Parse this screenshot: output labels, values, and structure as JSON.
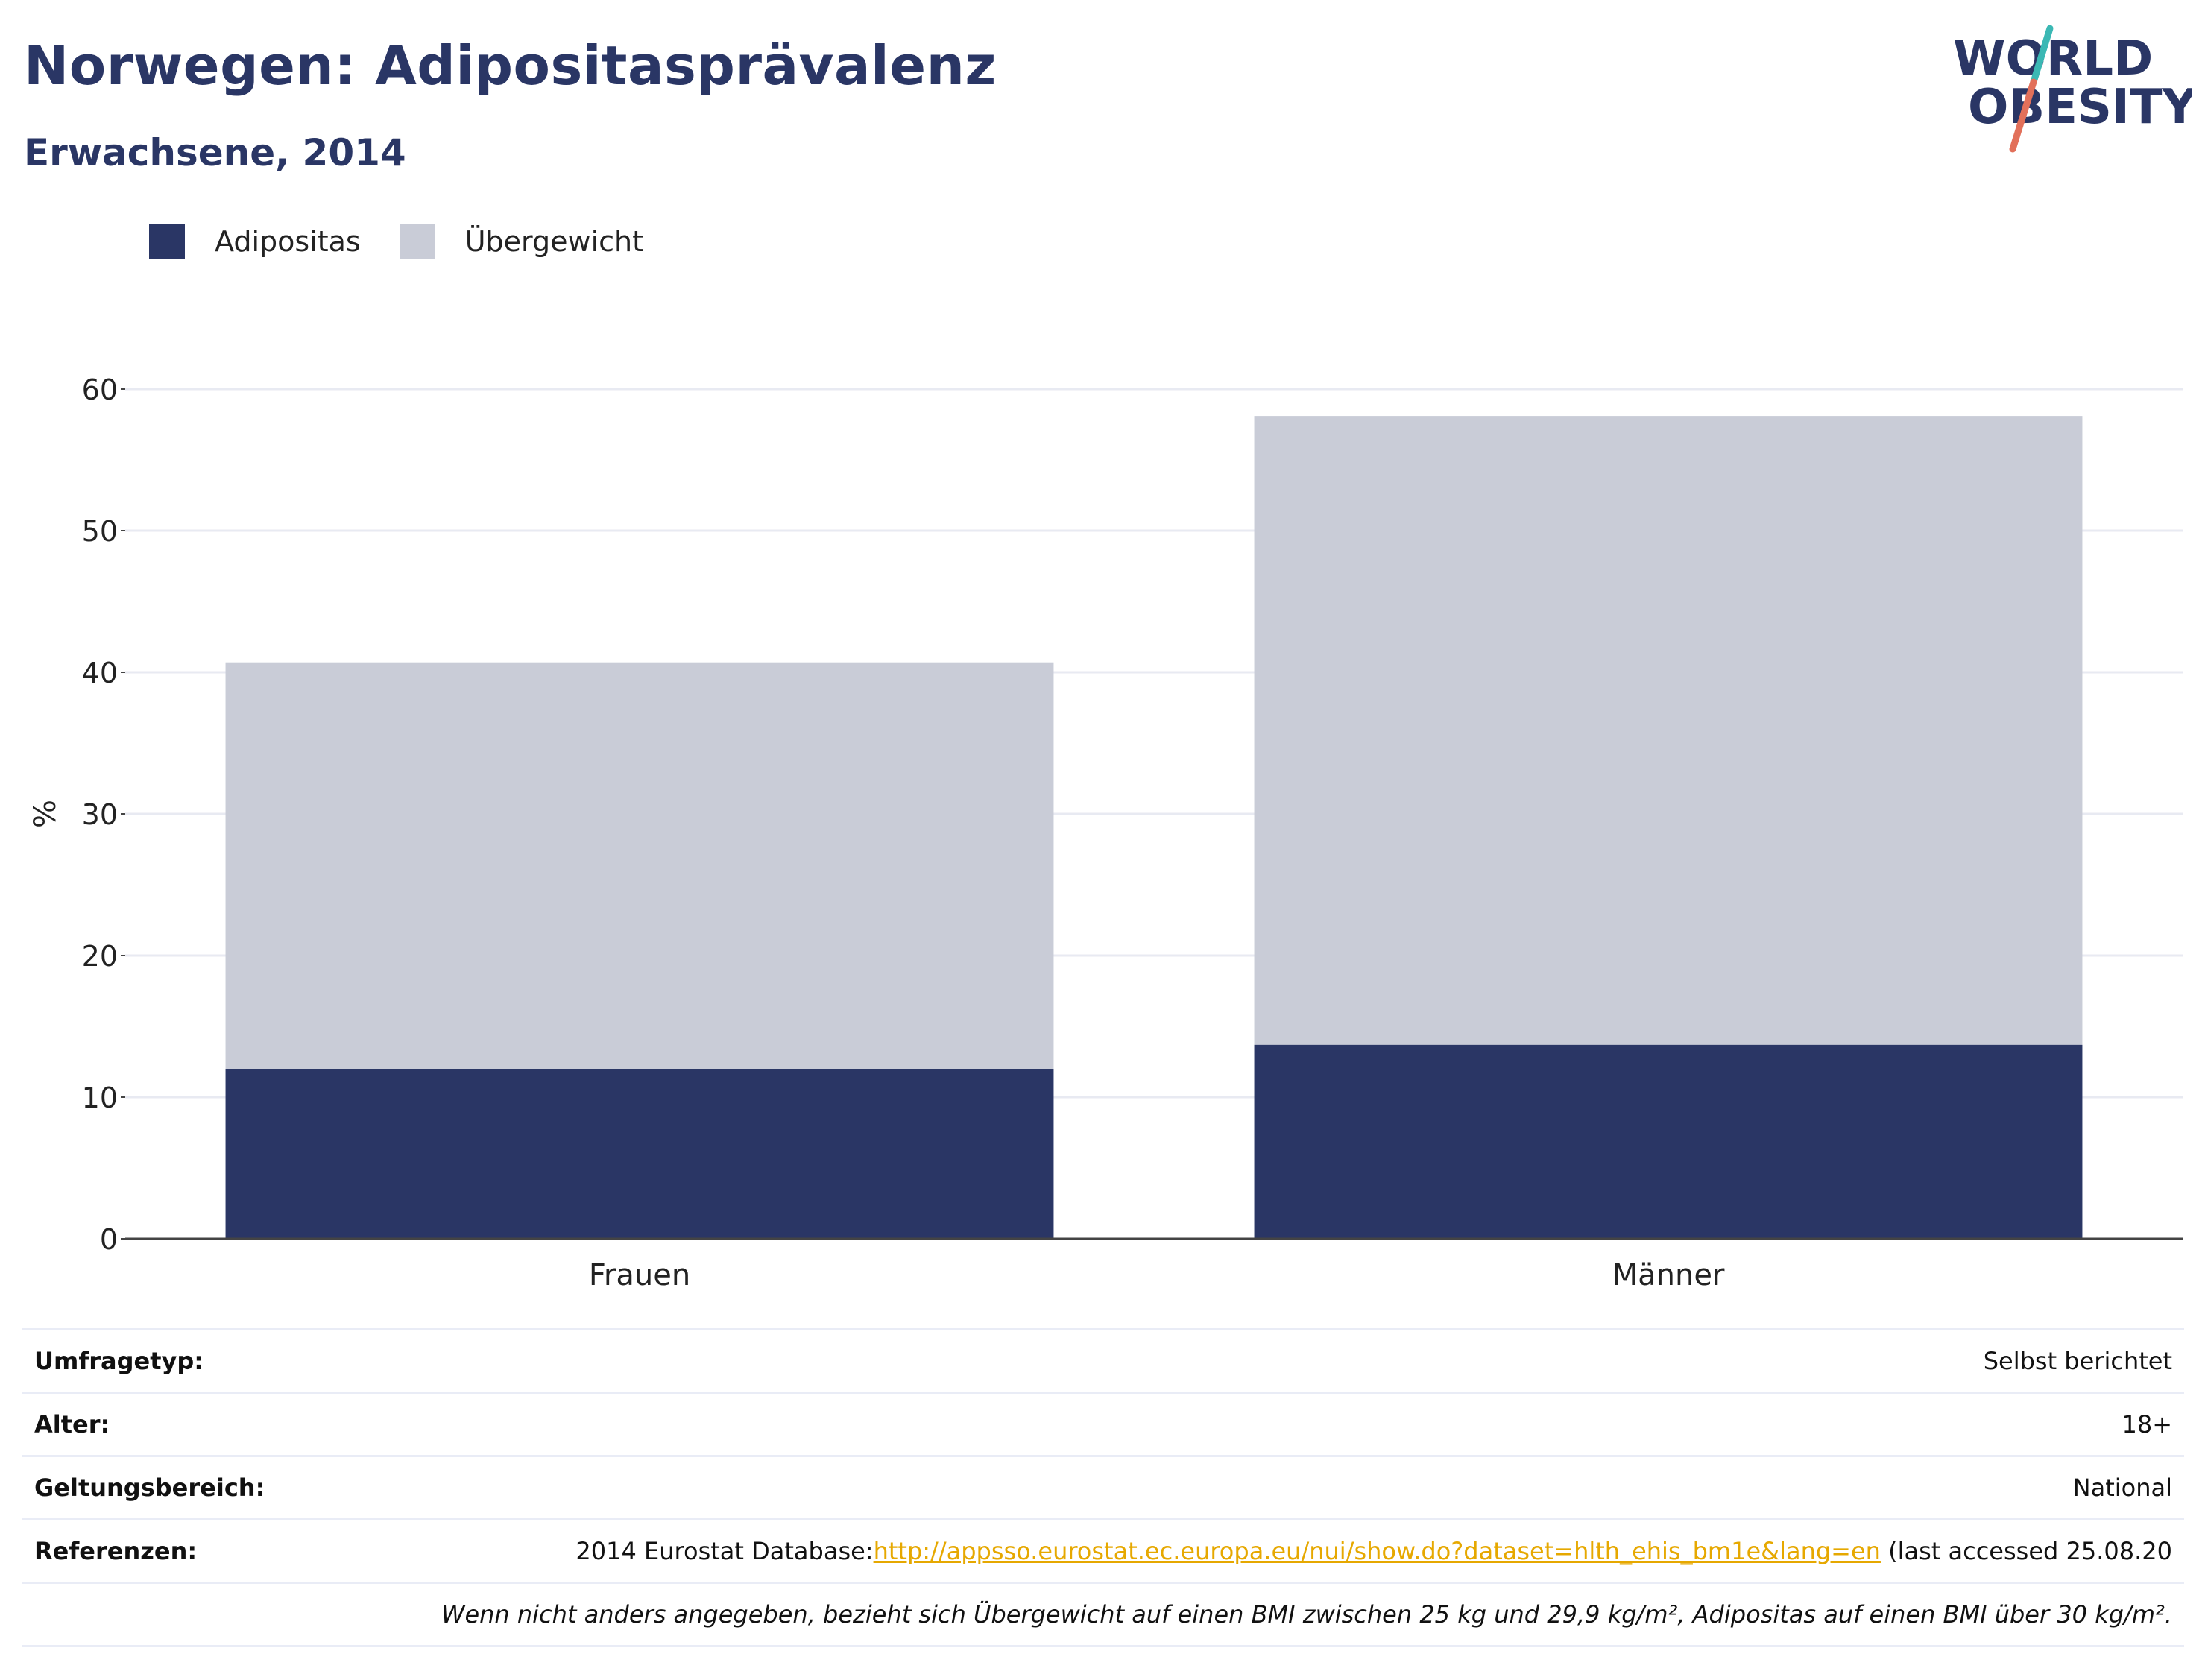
{
  "header": {
    "title": "Norwegen: Adipositasprävalenz",
    "subtitle": "Erwachsene, 2014"
  },
  "logo": {
    "line1": "WORLD",
    "line2": "OBESITY",
    "colors": {
      "text": "#2a3665",
      "slash_top": "#3bb8b4",
      "slash_bottom": "#e2705a"
    }
  },
  "legend": [
    {
      "label": "Adipositas",
      "color": "#2a3665"
    },
    {
      "label": "Übergewicht",
      "color": "#c9ccd7"
    }
  ],
  "chart_data": {
    "type": "bar",
    "stacked": true,
    "categories": [
      "Frauen",
      "Männer"
    ],
    "series": [
      {
        "name": "Adipositas",
        "values": [
          12.0,
          13.7
        ],
        "color": "#2a3665"
      },
      {
        "name": "Übergewicht",
        "values": [
          28.7,
          44.4
        ],
        "color": "#c9ccd7"
      }
    ],
    "ylabel": "%",
    "xlabel": "",
    "ylim": [
      0,
      60
    ],
    "yticks": [
      0,
      10,
      20,
      30,
      40,
      50,
      60
    ],
    "grid": true,
    "legend_position": "top-left"
  },
  "meta": [
    {
      "key": "Umfragetyp:",
      "value": "Selbst berichtet"
    },
    {
      "key": "Alter:",
      "value": "18+"
    },
    {
      "key": "Geltungsbereich:",
      "value": "National"
    },
    {
      "key": "Referenzen:",
      "value_prefix": "2014 Eurostat Database:",
      "link": "http://appsso.eurostat.ec.europa.eu/nui/show.do?dataset=hlth_ehis_bm1e&lang=en",
      "value_suffix": " (last accessed 25.08.20"
    }
  ],
  "footnote": "Wenn nicht anders angegeben, bezieht sich Übergewicht auf einen BMI zwischen 25 kg und 29,9 kg/m², Adipositas auf einen BMI über 30 kg/m²."
}
